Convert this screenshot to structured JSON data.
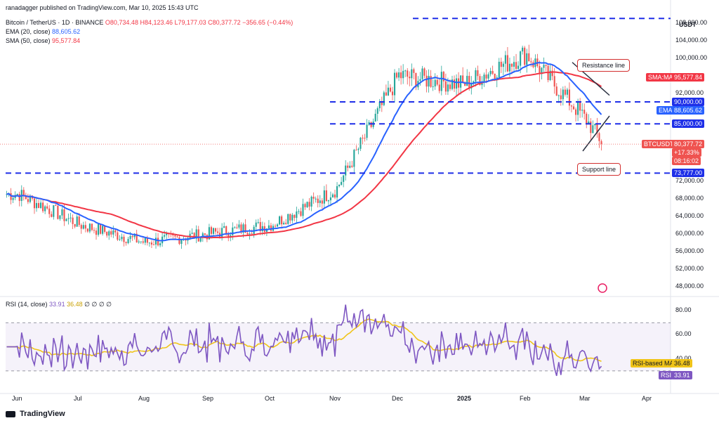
{
  "header": {
    "publisher": "ranadagger published on TradingView.com, Mar 10, 2025 15:43 UTC",
    "symbol": "Bitcoin / TetherUS · 1D · BINANCE",
    "ohlc": {
      "o": "O80,734.48",
      "h": "H84,123.46",
      "l": "L79,177.03",
      "c": "C80,377.72",
      "chg": "−356.65 (−0.44%)"
    },
    "ema_label": "EMA (20, close)",
    "ema_value": "88,605.62",
    "sma_label": "SMA (50, close)",
    "sma_value": "95,577.84",
    "rsi_label": "RSI (14, close)",
    "rsi_value": "33.91",
    "rsi_ma_value": "36.48",
    "rsi_extra": "∅ ∅ ∅ ∅"
  },
  "currency": "USDT",
  "footer": {
    "brand": "TradingView"
  },
  "annotations": {
    "resistance": "Resistance line",
    "support": "Support line"
  },
  "colors": {
    "up": "#26a69a",
    "down": "#ef5350",
    "ema": "#2962ff",
    "sma": "#f23645",
    "rsi": "#7e57c2",
    "rsi_ma": "#f0c419",
    "level": "#1e2fe8"
  },
  "chart_data": {
    "type": "candlestick",
    "price_axis": {
      "min": 46000,
      "max": 110000,
      "ticks": [
        "108,000.00",
        "104,000.00",
        "100,000.00",
        "92,000.00",
        "88,000.00",
        "80,000.00",
        "72,000.00",
        "68,000.00",
        "64,000.00",
        "60,000.00",
        "56,000.00",
        "52,000.00",
        "48,000.00"
      ]
    },
    "time_axis": {
      "labels": [
        "Jun",
        "Jul",
        "Aug",
        "Sep",
        "Oct",
        "Nov",
        "Dec",
        "2025",
        "Feb",
        "Mar",
        "Apr"
      ]
    },
    "levels": [
      {
        "value": 109000,
        "label": ""
      },
      {
        "value": 90000,
        "label": "90,000.00"
      },
      {
        "value": 85000,
        "label": "85,000.00"
      },
      {
        "value": 73777,
        "label": "73,777.00"
      }
    ],
    "price_tags": [
      {
        "name": "SMA:MA",
        "value": "95,577.84"
      },
      {
        "name": "EMA",
        "value": "88,605.62"
      },
      {
        "name": "BTCUSDT",
        "value": "80,377.72",
        "change": "+17.33%",
        "timer": "08:16:02"
      }
    ],
    "rsi_axis": {
      "min": 20,
      "max": 90,
      "ticks": [
        "80.00",
        "60.00",
        "40.00"
      ],
      "band": [
        30,
        70
      ]
    },
    "rsi_tags": [
      {
        "name": "RSI-based MA",
        "value": "36.48"
      },
      {
        "name": "RSI",
        "value": "33.91"
      }
    ],
    "close_series_sample": [
      {
        "t": "Jun",
        "v": 69000
      },
      {
        "t": "Jul",
        "v": 62000
      },
      {
        "t": "Aug",
        "v": 58000
      },
      {
        "t": "Sep",
        "v": 60000
      },
      {
        "t": "Oct",
        "v": 62000
      },
      {
        "t": "Nov",
        "v": 70000
      },
      {
        "t": "Dec",
        "v": 96000
      },
      {
        "t": "2025",
        "v": 94000
      },
      {
        "t": "Feb",
        "v": 101000
      },
      {
        "t": "Mar",
        "v": 86000
      },
      {
        "t": "Mar 10",
        "v": 80377.72
      }
    ]
  }
}
